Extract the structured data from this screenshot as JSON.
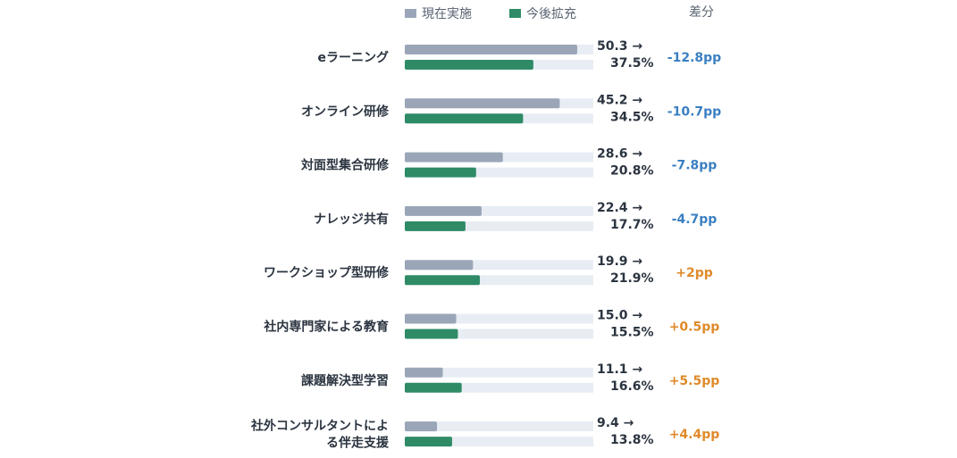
{
  "chart_data": {
    "type": "bar",
    "orientation": "horizontal",
    "legend": {
      "position": "top",
      "items": [
        {
          "name": "現在実施",
          "color": "#9aa6b8"
        },
        {
          "name": "今後拡充",
          "color": "#2e8b66"
        }
      ]
    },
    "diff_header": "差分",
    "xlim": [
      0,
      55
    ],
    "categories": [
      [
        "eラーニング"
      ],
      [
        "オンライン研修"
      ],
      [
        "対面型集合研修"
      ],
      [
        "ナレッジ共有"
      ],
      [
        "ワークショップ型研修"
      ],
      [
        "社内専門家による教育"
      ],
      [
        "課題解決型学習"
      ],
      [
        "社外コンサルタントによ",
        "る伴走支援"
      ]
    ],
    "series": [
      {
        "name": "現在実施",
        "values": [
          50.3,
          45.2,
          28.6,
          22.4,
          19.9,
          15.0,
          11.1,
          9.4
        ]
      },
      {
        "name": "今後拡充",
        "values": [
          37.5,
          34.5,
          20.8,
          17.7,
          21.9,
          15.5,
          16.6,
          13.8
        ]
      }
    ],
    "value_labels_current": [
      "50.3 →",
      "45.2 →",
      "28.6 →",
      "22.4 →",
      "19.9 →",
      "15.0 →",
      "11.1 →",
      "9.4 →"
    ],
    "value_labels_future": [
      "37.5%",
      "34.5%",
      "20.8%",
      "17.7%",
      "21.9%",
      "15.5%",
      "16.6%",
      "13.8%"
    ],
    "diff_labels": [
      "-12.8pp",
      "-10.7pp",
      "-7.8pp",
      "-4.7pp",
      "+2pp",
      "+0.5pp",
      "+5.5pp",
      "+4.4pp"
    ],
    "colors": {
      "current": "#9aa6b8",
      "future": "#2e8b66",
      "track": "#e8edf4",
      "negative": "#3a7fc1",
      "positive": "#e08a2a",
      "label": "#2b3440",
      "header": "#5a6472"
    }
  }
}
